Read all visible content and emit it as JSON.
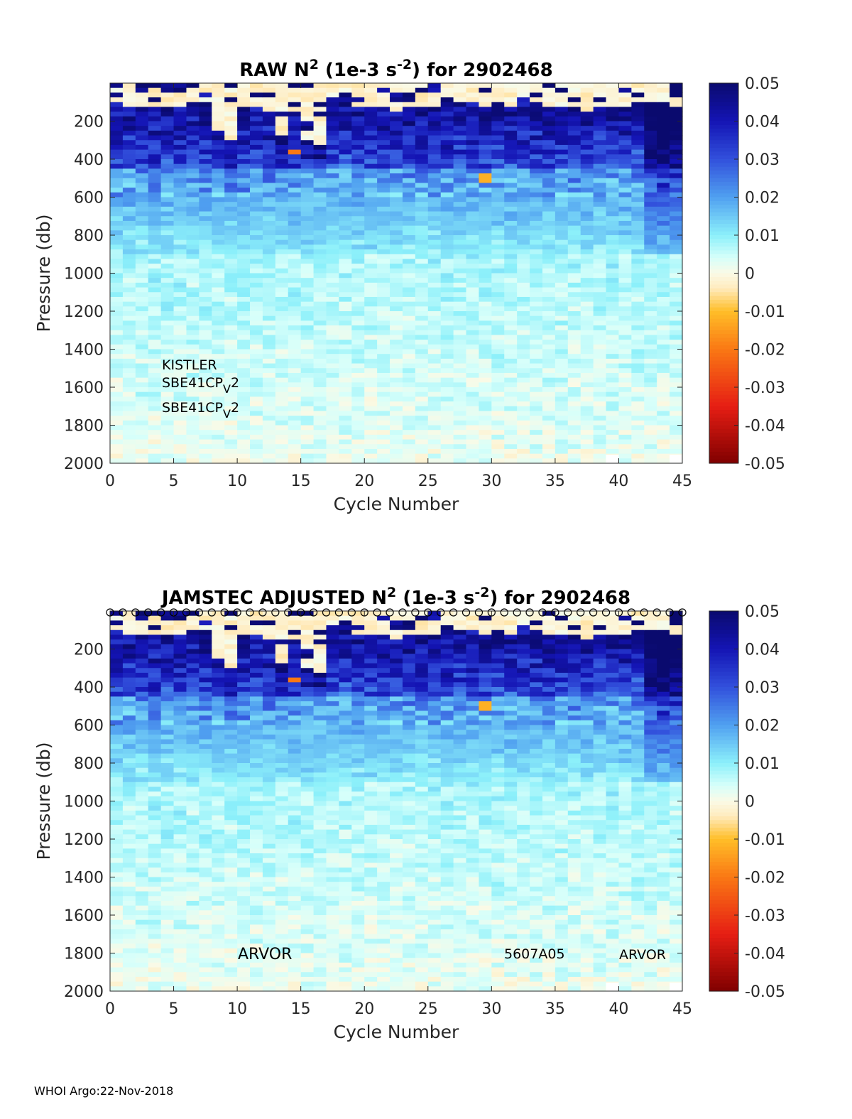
{
  "chart_data": [
    {
      "type": "heatmap",
      "title_prefix": "RAW N",
      "title_sup1": "2",
      "title_mid": " (1e-3 s",
      "title_sup2": "-2",
      "title_suffix": ") for 2902468",
      "xlabel": "Cycle Number",
      "ylabel": "Pressure (db)",
      "xlim": [
        0,
        45
      ],
      "ylim": [
        0,
        2000
      ],
      "x_ticks": [
        "0",
        "5",
        "10",
        "15",
        "20",
        "25",
        "30",
        "35",
        "40",
        "45"
      ],
      "y_ticks": [
        "200",
        "400",
        "600",
        "800",
        "1000",
        "1200",
        "1400",
        "1600",
        "1800",
        "2000"
      ],
      "colorbar": {
        "range": [
          -0.05,
          0.05
        ],
        "ticks": [
          "0.05",
          "0.04",
          "0.03",
          "0.02",
          "0.01",
          "0",
          "-0.01",
          "-0.02",
          "-0.03",
          "-0.04",
          "-0.05"
        ]
      },
      "annotations": [
        {
          "label": "KISTLER"
        },
        {
          "label": "SBE41CP",
          "sub": "V",
          "tail": "2"
        },
        {
          "label": "SBE41CP",
          "sub": "V",
          "tail": "2"
        }
      ]
    },
    {
      "type": "heatmap",
      "title_prefix": "JAMSTEC  ADJUSTED N",
      "title_sup1": "2",
      "title_mid": " (1e-3 s",
      "title_sup2": "-2",
      "title_suffix": ") for 2902468",
      "xlabel": "Cycle Number",
      "ylabel": "Pressure (db)",
      "xlim": [
        0,
        45
      ],
      "ylim": [
        0,
        2000
      ],
      "x_ticks": [
        "0",
        "5",
        "10",
        "15",
        "20",
        "25",
        "30",
        "35",
        "40",
        "45"
      ],
      "y_ticks": [
        "200",
        "400",
        "600",
        "800",
        "1000",
        "1200",
        "1400",
        "1600",
        "1800",
        "2000"
      ],
      "colorbar": {
        "range": [
          -0.05,
          0.05
        ],
        "ticks": [
          "0.05",
          "0.04",
          "0.03",
          "0.02",
          "0.01",
          "0",
          "-0.01",
          "-0.02",
          "-0.03",
          "-0.04",
          "-0.05"
        ]
      },
      "surface_markers": "o",
      "annotations": [
        {
          "label": "ARVOR"
        },
        {
          "label": "5607A05"
        },
        {
          "label": "ARVOR"
        }
      ]
    }
  ],
  "footer": "WHOI Argo:22-Nov-2018"
}
